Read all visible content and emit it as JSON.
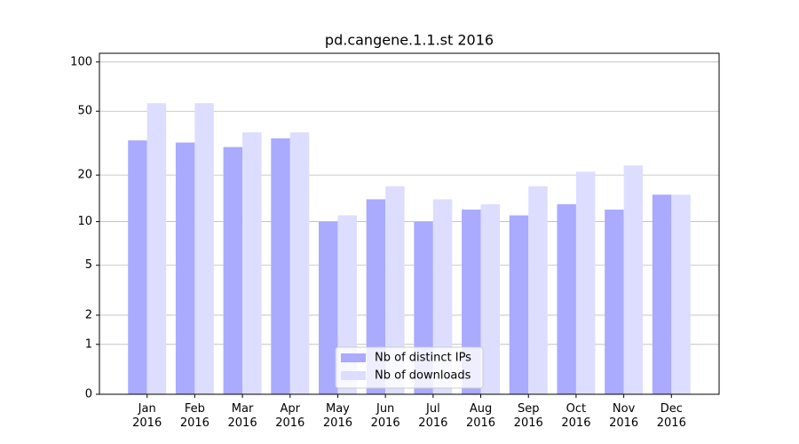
{
  "chart_data": {
    "type": "bar",
    "title": "pd.cangene.1.1.st 2016",
    "categories": [
      "Jan\n2016",
      "Feb\n2016",
      "Mar\n2016",
      "Apr\n2016",
      "May\n2016",
      "Jun\n2016",
      "Jul\n2016",
      "Aug\n2016",
      "Sep\n2016",
      "Oct\n2016",
      "Nov\n2016",
      "Dec\n2016"
    ],
    "series": [
      {
        "name": "Nb of distinct IPs",
        "color": "#aaaaff",
        "values": [
          33,
          32,
          30,
          34,
          10,
          14,
          10,
          12,
          11,
          13,
          12,
          15
        ]
      },
      {
        "name": "Nb of downloads",
        "color": "#ddddff",
        "values": [
          56,
          56,
          37,
          37,
          11,
          17,
          14,
          13,
          17,
          21,
          23,
          15
        ]
      }
    ],
    "yscale": "log1p",
    "ylim": [
      0,
      113
    ],
    "yticks": [
      0,
      1,
      2,
      5,
      10,
      20,
      50,
      100
    ],
    "grid": true,
    "legend": "lower center"
  }
}
